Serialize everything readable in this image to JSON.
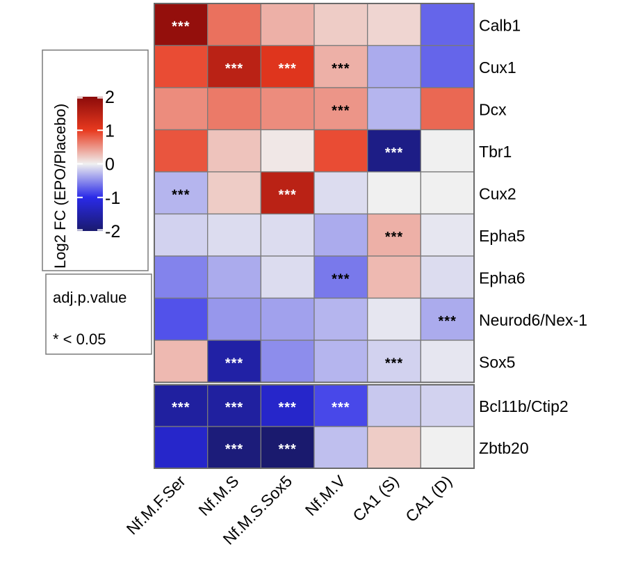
{
  "chart_data": {
    "type": "heatmap",
    "columns": [
      "Nf.M.F.Ser",
      "Nf.M.S",
      "Nf.M.S.Sox5",
      "Nf.M.V",
      "CA1 (S)",
      "CA1 (D)"
    ],
    "rows": [
      "Calb1",
      "Cux1",
      "Dcx",
      "Tbr1",
      "Cux2",
      "Epha5",
      "Epha6",
      "Neurod6/Nex-1",
      "Sox5",
      "Bcl11b/Ctip2",
      "Zbtb20"
    ],
    "row_groups": [
      [
        "Calb1",
        "Cux1",
        "Dcx",
        "Tbr1",
        "Cux2",
        "Epha5",
        "Epha6",
        "Neurod6/Nex-1",
        "Sox5"
      ],
      [
        "Bcl11b/Ctip2",
        "Zbtb20"
      ]
    ],
    "values": [
      [
        1.9,
        0.7,
        0.35,
        0.2,
        0.15,
        -0.7
      ],
      [
        0.9,
        1.5,
        1.1,
        0.35,
        -0.35,
        -0.7
      ],
      [
        0.55,
        0.65,
        0.55,
        0.5,
        -0.3,
        0.75
      ],
      [
        0.85,
        0.25,
        0.05,
        0.9,
        -1.8,
        0.0
      ],
      [
        -0.3,
        0.2,
        1.5,
        -0.1,
        0.0,
        0.0
      ],
      [
        -0.15,
        -0.1,
        -0.1,
        -0.35,
        0.35,
        -0.05
      ],
      [
        -0.55,
        -0.35,
        -0.1,
        -0.6,
        0.3,
        -0.1
      ],
      [
        -0.8,
        -0.45,
        -0.4,
        -0.3,
        -0.05,
        -0.35
      ],
      [
        0.3,
        -1.55,
        -0.5,
        -0.3,
        -0.15,
        -0.05
      ],
      [
        -1.6,
        -1.6,
        -1.25,
        -0.85,
        -0.2,
        -0.15
      ],
      [
        -1.25,
        -1.9,
        -2.0,
        -0.25,
        0.2,
        0.0
      ]
    ],
    "significance": [
      [
        "***",
        "",
        "",
        "",
        "",
        ""
      ],
      [
        "",
        "***",
        "***",
        "***",
        "",
        ""
      ],
      [
        "",
        "",
        "",
        "***",
        "",
        ""
      ],
      [
        "",
        "",
        "",
        "",
        "***",
        ""
      ],
      [
        "***",
        "",
        "***",
        "",
        "",
        ""
      ],
      [
        "",
        "",
        "",
        "",
        "***",
        ""
      ],
      [
        "",
        "",
        "",
        "***",
        "",
        ""
      ],
      [
        "",
        "",
        "",
        "",
        "",
        "***"
      ],
      [
        "",
        "***",
        "",
        "",
        "***",
        ""
      ],
      [
        "***",
        "***",
        "***",
        "***",
        "",
        ""
      ],
      [
        "",
        "***",
        "***",
        "",
        "",
        ""
      ]
    ],
    "color_scale": {
      "label": "Log2 FC (EPO/Placebo)",
      "range": [
        -2,
        2
      ],
      "ticks": [
        "2",
        "1",
        "0",
        "-1",
        "-2"
      ],
      "colors": {
        "low": "#1a1a6e",
        "mid_low": "#2a2ae8",
        "mid": "#f0f0f0",
        "mid_high": "#e83a1f",
        "high": "#8b0a0a"
      }
    },
    "significance_legend": {
      "title": "adj.p.value",
      "entry": "* < 0.05"
    }
  }
}
